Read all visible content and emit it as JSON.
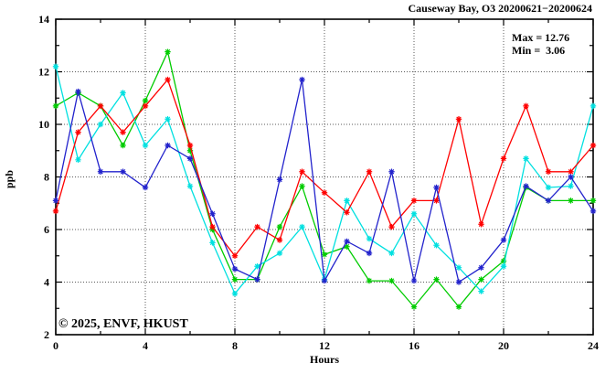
{
  "header": {
    "title": "Causeway Bay, O3 20200621−20200624"
  },
  "annotations": {
    "max_label": "Max = 12.76",
    "min_label": "Min =  3.06"
  },
  "watermark": {
    "text": "© 2025, ENVF, HKUST",
    "color": "#d2d2d2"
  },
  "chart_data": {
    "type": "line",
    "title": "Causeway Bay, O3 20200621−20200624",
    "xlabel": "Hours",
    "ylabel": "ppb",
    "xlim": [
      0,
      24
    ],
    "ylim": [
      2,
      14
    ],
    "x_major_ticks": [
      0,
      4,
      8,
      12,
      16,
      20,
      24
    ],
    "x_minor_ticks": [
      2,
      6,
      10,
      14,
      18,
      22
    ],
    "y_major_ticks": [
      2,
      4,
      6,
      8,
      10,
      12,
      14
    ],
    "y_minor_ticks": [
      3,
      5,
      7,
      9,
      11,
      13
    ],
    "grid_x": [
      4,
      8,
      12,
      16,
      20
    ],
    "grid_y": [
      4,
      6,
      8,
      10,
      12
    ],
    "legend": "none",
    "grid": "dotted",
    "marker": "asterisk",
    "stats": {
      "max": 12.76,
      "min": 3.06
    },
    "x": [
      0,
      1,
      2,
      3,
      4,
      5,
      6,
      7,
      8,
      9,
      10,
      11,
      12,
      13,
      14,
      15,
      16,
      17,
      18,
      19,
      20,
      21,
      22,
      23,
      24
    ],
    "series": [
      {
        "name": "green",
        "color": "#00cc00",
        "values": [
          10.7,
          11.2,
          10.7,
          9.2,
          10.9,
          12.76,
          9.0,
          6.0,
          4.1,
          4.1,
          6.1,
          7.65,
          5.05,
          5.35,
          4.05,
          4.05,
          3.06,
          4.1,
          3.06,
          4.1,
          4.8,
          7.6,
          7.1,
          7.1,
          7.1
        ]
      },
      {
        "name": "cyan",
        "color": "#00e0e0",
        "values": [
          12.2,
          8.65,
          10.0,
          11.2,
          9.2,
          10.2,
          7.65,
          5.5,
          3.56,
          4.6,
          5.1,
          6.1,
          4.1,
          7.1,
          5.65,
          5.1,
          6.6,
          5.4,
          4.55,
          3.65,
          4.6,
          8.7,
          7.6,
          7.65,
          10.7
        ]
      },
      {
        "name": "red",
        "color": "#ff0000",
        "values": [
          6.7,
          9.7,
          10.7,
          9.7,
          10.7,
          11.7,
          9.2,
          6.1,
          5.0,
          6.1,
          5.6,
          8.2,
          7.4,
          6.65,
          8.2,
          6.1,
          7.1,
          7.1,
          10.2,
          6.2,
          8.7,
          10.7,
          8.2,
          8.2,
          9.2
        ]
      },
      {
        "name": "blue",
        "color": "#2222cc",
        "values": [
          7.1,
          11.25,
          8.2,
          8.2,
          7.6,
          9.2,
          8.7,
          6.6,
          4.5,
          4.1,
          7.9,
          11.7,
          4.05,
          5.55,
          5.1,
          8.2,
          4.05,
          7.6,
          4.0,
          4.55,
          5.6,
          7.65,
          7.1,
          8.0,
          6.7
        ]
      }
    ]
  }
}
